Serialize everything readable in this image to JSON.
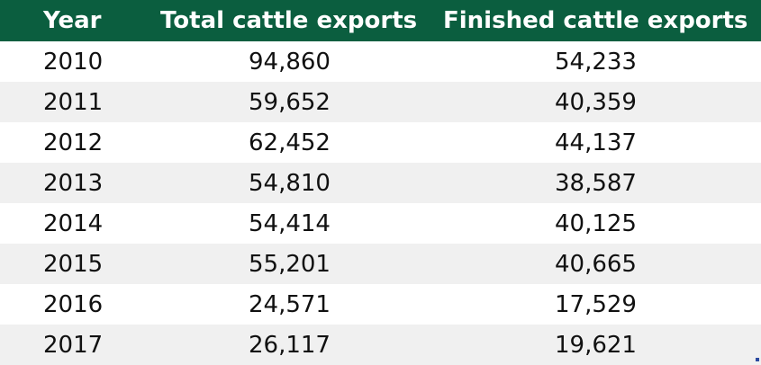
{
  "table": {
    "headers": [
      "Year",
      "Total cattle exports",
      "Finished cattle exports"
    ],
    "rows": [
      {
        "year": "2010",
        "total": "94,860",
        "finished": "54,233"
      },
      {
        "year": "2011",
        "total": "59,652",
        "finished": "40,359"
      },
      {
        "year": "2012",
        "total": "62,452",
        "finished": "44,137"
      },
      {
        "year": "2013",
        "total": "54,810",
        "finished": "38,587"
      },
      {
        "year": "2014",
        "total": "54,414",
        "finished": "40,125"
      },
      {
        "year": "2015",
        "total": "55,201",
        "finished": "40,665"
      },
      {
        "year": "2016",
        "total": "24,571",
        "finished": "17,529"
      },
      {
        "year": "2017",
        "total": "26,117",
        "finished": "19,621"
      }
    ]
  },
  "colors": {
    "header_bg": "#0b5e3f",
    "header_text": "#ffffff",
    "alt_row_bg": "#f0f0f0"
  }
}
